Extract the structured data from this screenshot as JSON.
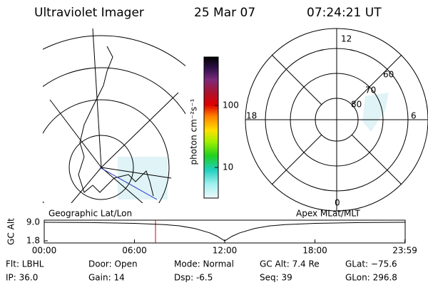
{
  "header": {
    "instrument": "Ultraviolet Imager",
    "date": "25 Mar 07",
    "time": "07:24:21 UT"
  },
  "colorbar": {
    "label": "photon cm⁻²s⁻¹",
    "ticks": [
      "100",
      "10"
    ]
  },
  "polar": {
    "mlt_labels": [
      "12",
      "18",
      "6",
      "0"
    ],
    "lat_labels": [
      "60",
      "70",
      "80"
    ]
  },
  "panel_labels": {
    "left": "Geographic Lat/Lon",
    "right": "Apex MLat/MLT"
  },
  "orbit_plot": {
    "y_label": "GC Alt",
    "ylim": [
      1.8,
      9.0
    ],
    "yticks": [
      {
        "value": 9.0,
        "label": "9.0"
      },
      {
        "value": 1.8,
        "label": "1.8"
      }
    ],
    "xlim": [
      0,
      24
    ],
    "xticks": [
      {
        "value": 0,
        "label": "00:00"
      },
      {
        "value": 6,
        "label": "06:00"
      },
      {
        "value": 12,
        "label": "12:00"
      },
      {
        "value": 18,
        "label": "18:00"
      },
      {
        "value": 23.98,
        "label": "23:59"
      }
    ],
    "x": [
      0,
      3,
      6,
      8,
      9,
      10,
      11,
      11.5,
      12,
      12.5,
      13,
      14,
      15,
      16,
      18,
      21,
      24
    ],
    "alt": [
      9.0,
      8.9,
      8.6,
      8.1,
      7.6,
      6.6,
      4.9,
      3.6,
      1.8,
      3.6,
      4.9,
      6.6,
      7.6,
      8.1,
      8.6,
      8.9,
      9.0
    ],
    "current_hour": 7.4
  },
  "info": [
    [
      "Flt: LBHL",
      "Door: Open",
      "Mode: Normal",
      "GC Alt: 7.4 Re",
      "GLat: −75.6"
    ],
    [
      "IP: 36.0",
      "Gain: 14",
      "Dsp:   -6.5",
      "Seq: 39",
      "GLon: 296.8"
    ]
  ]
}
